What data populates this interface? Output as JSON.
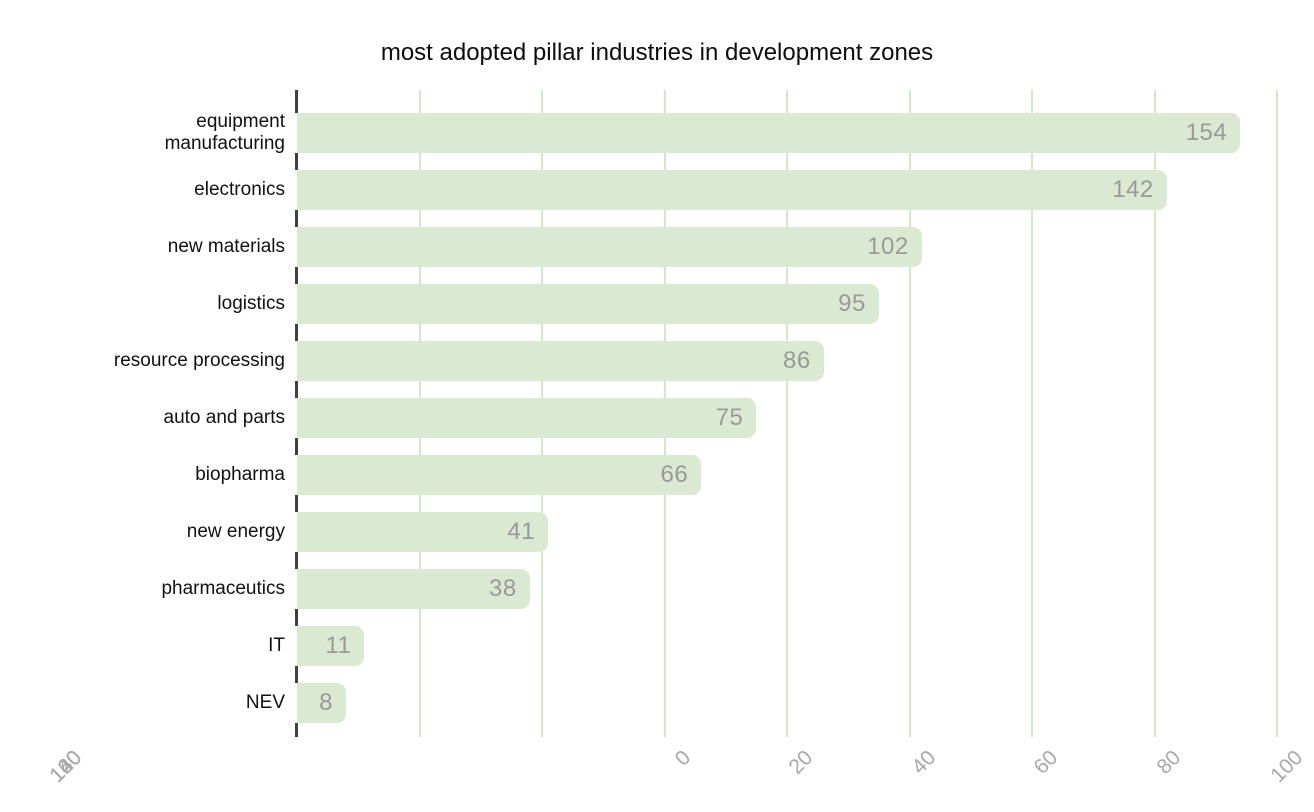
{
  "chart_data": {
    "type": "bar",
    "orientation": "horizontal",
    "title": "most adopted pillar industries in development zones",
    "categories": [
      "equipment manufacturing",
      "electronics",
      "new materials",
      "logistics",
      "resource processing",
      "auto and parts",
      "biopharma",
      "new energy",
      "pharmaceutics",
      "IT",
      "NEV"
    ],
    "values": [
      154,
      142,
      102,
      95,
      86,
      75,
      66,
      41,
      38,
      11,
      8
    ],
    "x_ticks": [
      "0",
      "20",
      "40",
      "60",
      "80",
      "100",
      "120",
      "140",
      "160"
    ],
    "xlim": [
      0,
      160
    ],
    "grid": "vertical-gridlines",
    "legend": "none",
    "value_labels": "inside-bar-end",
    "colors": {
      "background": "#ffffff",
      "bar_fill": "#dbe8d2",
      "gridline": "#d3e8c9",
      "axis_tick": "#404040",
      "value_label": "#9a9a9a",
      "axis_tick_label": "#a8a8a8",
      "category_label": "#111111",
      "title": "#0d0d0d"
    }
  }
}
